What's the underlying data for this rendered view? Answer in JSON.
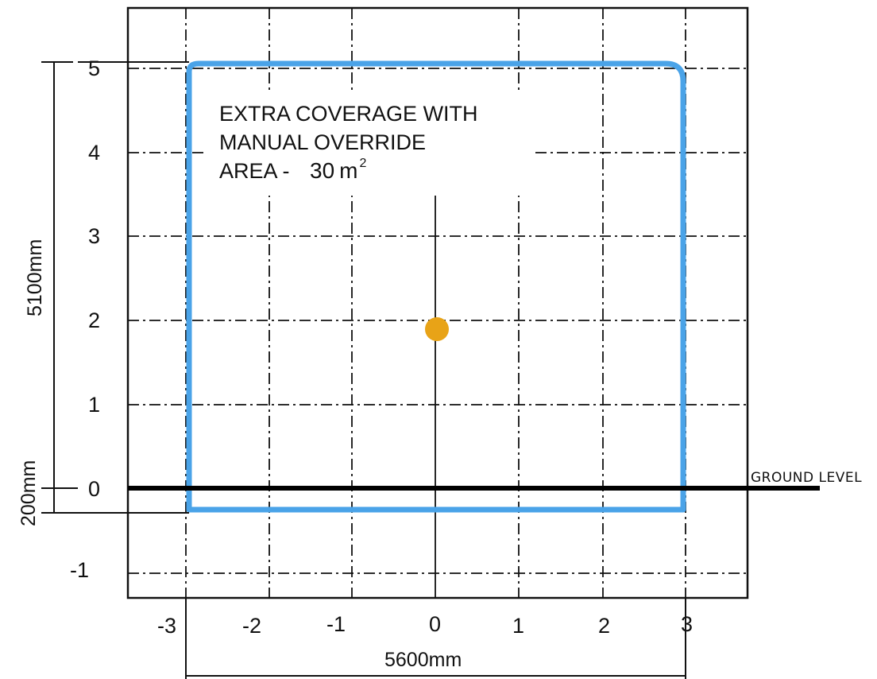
{
  "diagram": {
    "x_ticks": [
      "-3",
      "-2",
      "-1",
      "0",
      "1",
      "2",
      "3"
    ],
    "y_ticks": [
      "5",
      "4",
      "3",
      "2",
      "1",
      "0",
      "-1"
    ],
    "coverage_note": {
      "line1": "EXTRA COVERAGE WITH",
      "line2": "MANUAL OVERRIDE",
      "line3_prefix": "AREA - ",
      "area_value": "30",
      "area_unit": "m",
      "area_exponent": "2"
    },
    "ground_label": "GROUND LEVEL",
    "dimensions": {
      "height": "5100mm",
      "below_ground": "200mm",
      "width": "5600mm"
    },
    "coverage_region": {
      "x_min": -2.8,
      "x_max": 2.8,
      "y_min": -0.2,
      "y_max": 4.9,
      "color": "#4aa3e8"
    },
    "sensor": {
      "x": 0,
      "y": 1.9,
      "color": "#e8a317"
    },
    "ground_color": "#000000"
  }
}
